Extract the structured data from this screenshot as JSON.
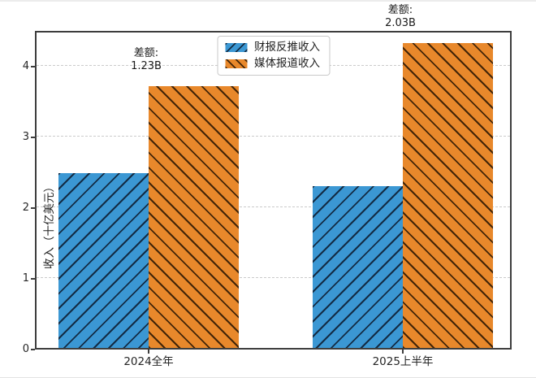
{
  "chart_data": {
    "type": "bar",
    "title": "",
    "categories": [
      "2024全年",
      "2025上半年"
    ],
    "series": [
      {
        "name": "财报反推收入",
        "values": [
          2.47,
          2.28
        ],
        "color": "#3b97d3",
        "hatch": "/",
        "hatch_color": "#132c45"
      },
      {
        "name": "媒体报道收入",
        "values": [
          3.7,
          4.31
        ],
        "color": "#e8882b",
        "hatch": "\\",
        "hatch_color": "#432508"
      }
    ],
    "annotations": [
      {
        "label": "差额:",
        "value": "1.23B",
        "group": 0
      },
      {
        "label": "差额:",
        "value": "2.03B",
        "group": 1
      }
    ],
    "xlabel": "",
    "ylabel": "收入（十亿美元）",
    "ylim": [
      0,
      4.5
    ],
    "yticks": [
      0,
      1,
      2,
      3,
      4
    ],
    "grid": "dashed horizontal at yticks 1-4, behind bars",
    "legend_position": "upper center inside axes"
  }
}
